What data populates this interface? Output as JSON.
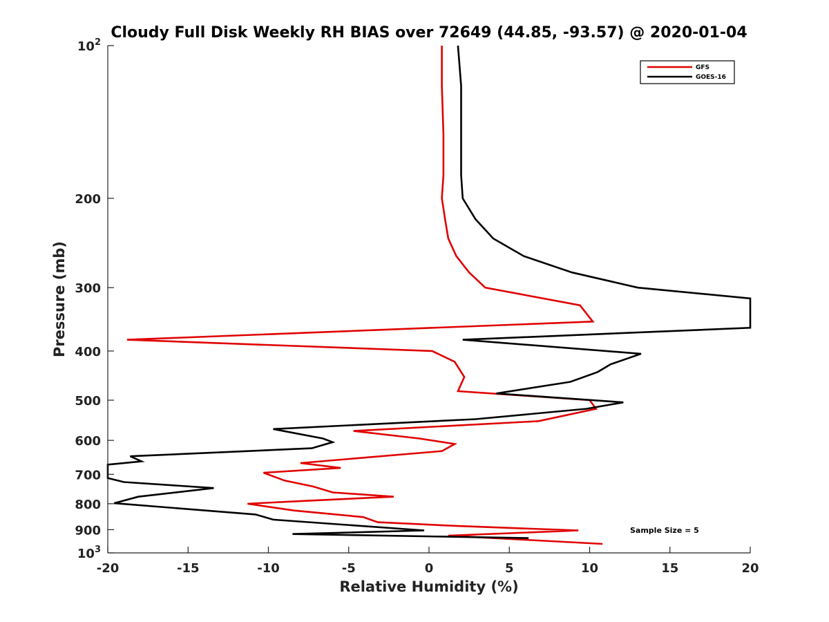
{
  "chart_data": {
    "type": "line",
    "title": "Cloudy Full Disk Weekly RH BIAS over 72649 (44.85, -93.57) @ 2020-01-04",
    "xlabel": "Relative Humidity (%)",
    "ylabel": "Pressure (mb)",
    "xlim": [
      -20,
      20
    ],
    "ylim": [
      100,
      1000
    ],
    "y_scale": "log",
    "y_reversed": true,
    "grid": false,
    "legend_position": "top-right",
    "x_ticks": [
      -20,
      -15,
      -10,
      -5,
      0,
      5,
      10,
      15,
      20
    ],
    "y_ticks": [
      {
        "value": 100,
        "base": "10",
        "exp": "2"
      },
      {
        "value": 200,
        "label": "200"
      },
      {
        "value": 300,
        "label": "300"
      },
      {
        "value": 400,
        "label": "400"
      },
      {
        "value": 500,
        "label": "500"
      },
      {
        "value": 600,
        "label": "600"
      },
      {
        "value": 700,
        "label": "700"
      },
      {
        "value": 800,
        "label": "800"
      },
      {
        "value": 900,
        "label": "900"
      },
      {
        "value": 1000,
        "base": "10",
        "exp": "3"
      }
    ],
    "annotation": "Sample Size = 5",
    "series": [
      {
        "name": "GFS",
        "color": "#e00000",
        "points": [
          [
            0.8,
            100
          ],
          [
            0.8,
            120
          ],
          [
            0.9,
            150
          ],
          [
            0.9,
            180
          ],
          [
            0.8,
            200
          ],
          [
            1.0,
            220
          ],
          [
            1.2,
            240
          ],
          [
            1.7,
            260
          ],
          [
            2.5,
            280
          ],
          [
            3.5,
            300
          ],
          [
            9.4,
            325
          ],
          [
            10.2,
            350
          ],
          [
            -18.8,
            380
          ],
          [
            0.2,
            400
          ],
          [
            1.6,
            420
          ],
          [
            2.2,
            450
          ],
          [
            1.8,
            480
          ],
          [
            10.0,
            500
          ],
          [
            10.4,
            520
          ],
          [
            6.8,
            550
          ],
          [
            -4.7,
            575
          ],
          [
            -0.6,
            595
          ],
          [
            1.6,
            610
          ],
          [
            0.8,
            630
          ],
          [
            -8.0,
            665
          ],
          [
            -5.5,
            680
          ],
          [
            -10.3,
            695
          ],
          [
            -9.0,
            720
          ],
          [
            -7.2,
            740
          ],
          [
            -6.0,
            760
          ],
          [
            -2.2,
            775
          ],
          [
            -7.9,
            790
          ],
          [
            -11.3,
            800
          ],
          [
            -8.4,
            825
          ],
          [
            -4.1,
            850
          ],
          [
            -3.2,
            870
          ],
          [
            1.8,
            885
          ],
          [
            9.3,
            903
          ],
          [
            1.2,
            925
          ],
          [
            10.8,
            960
          ]
        ]
      },
      {
        "name": "GOES-16",
        "color": "#000000",
        "points": [
          [
            1.8,
            100
          ],
          [
            2.0,
            120
          ],
          [
            2.0,
            150
          ],
          [
            2.0,
            180
          ],
          [
            2.1,
            200
          ],
          [
            2.9,
            220
          ],
          [
            4.0,
            240
          ],
          [
            5.9,
            260
          ],
          [
            8.9,
            280
          ],
          [
            13.0,
            300
          ],
          [
            20.0,
            315
          ],
          [
            20.0,
            360
          ],
          [
            2.1,
            380
          ],
          [
            13.2,
            405
          ],
          [
            11.3,
            425
          ],
          [
            10.5,
            440
          ],
          [
            8.8,
            460
          ],
          [
            4.2,
            485
          ],
          [
            12.1,
            505
          ],
          [
            9.8,
            520
          ],
          [
            2.9,
            545
          ],
          [
            -9.7,
            570
          ],
          [
            -6.6,
            595
          ],
          [
            -6.0,
            605
          ],
          [
            -7.3,
            622
          ],
          [
            -18.6,
            645
          ],
          [
            -17.9,
            660
          ],
          [
            -20.0,
            670
          ],
          [
            -20.0,
            712
          ],
          [
            -19.0,
            725
          ],
          [
            -13.4,
            745
          ],
          [
            -18.1,
            775
          ],
          [
            -19.6,
            798
          ],
          [
            -10.8,
            840
          ],
          [
            -9.7,
            860
          ],
          [
            -0.3,
            903
          ],
          [
            -8.5,
            918
          ],
          [
            6.2,
            935
          ]
        ]
      }
    ]
  }
}
